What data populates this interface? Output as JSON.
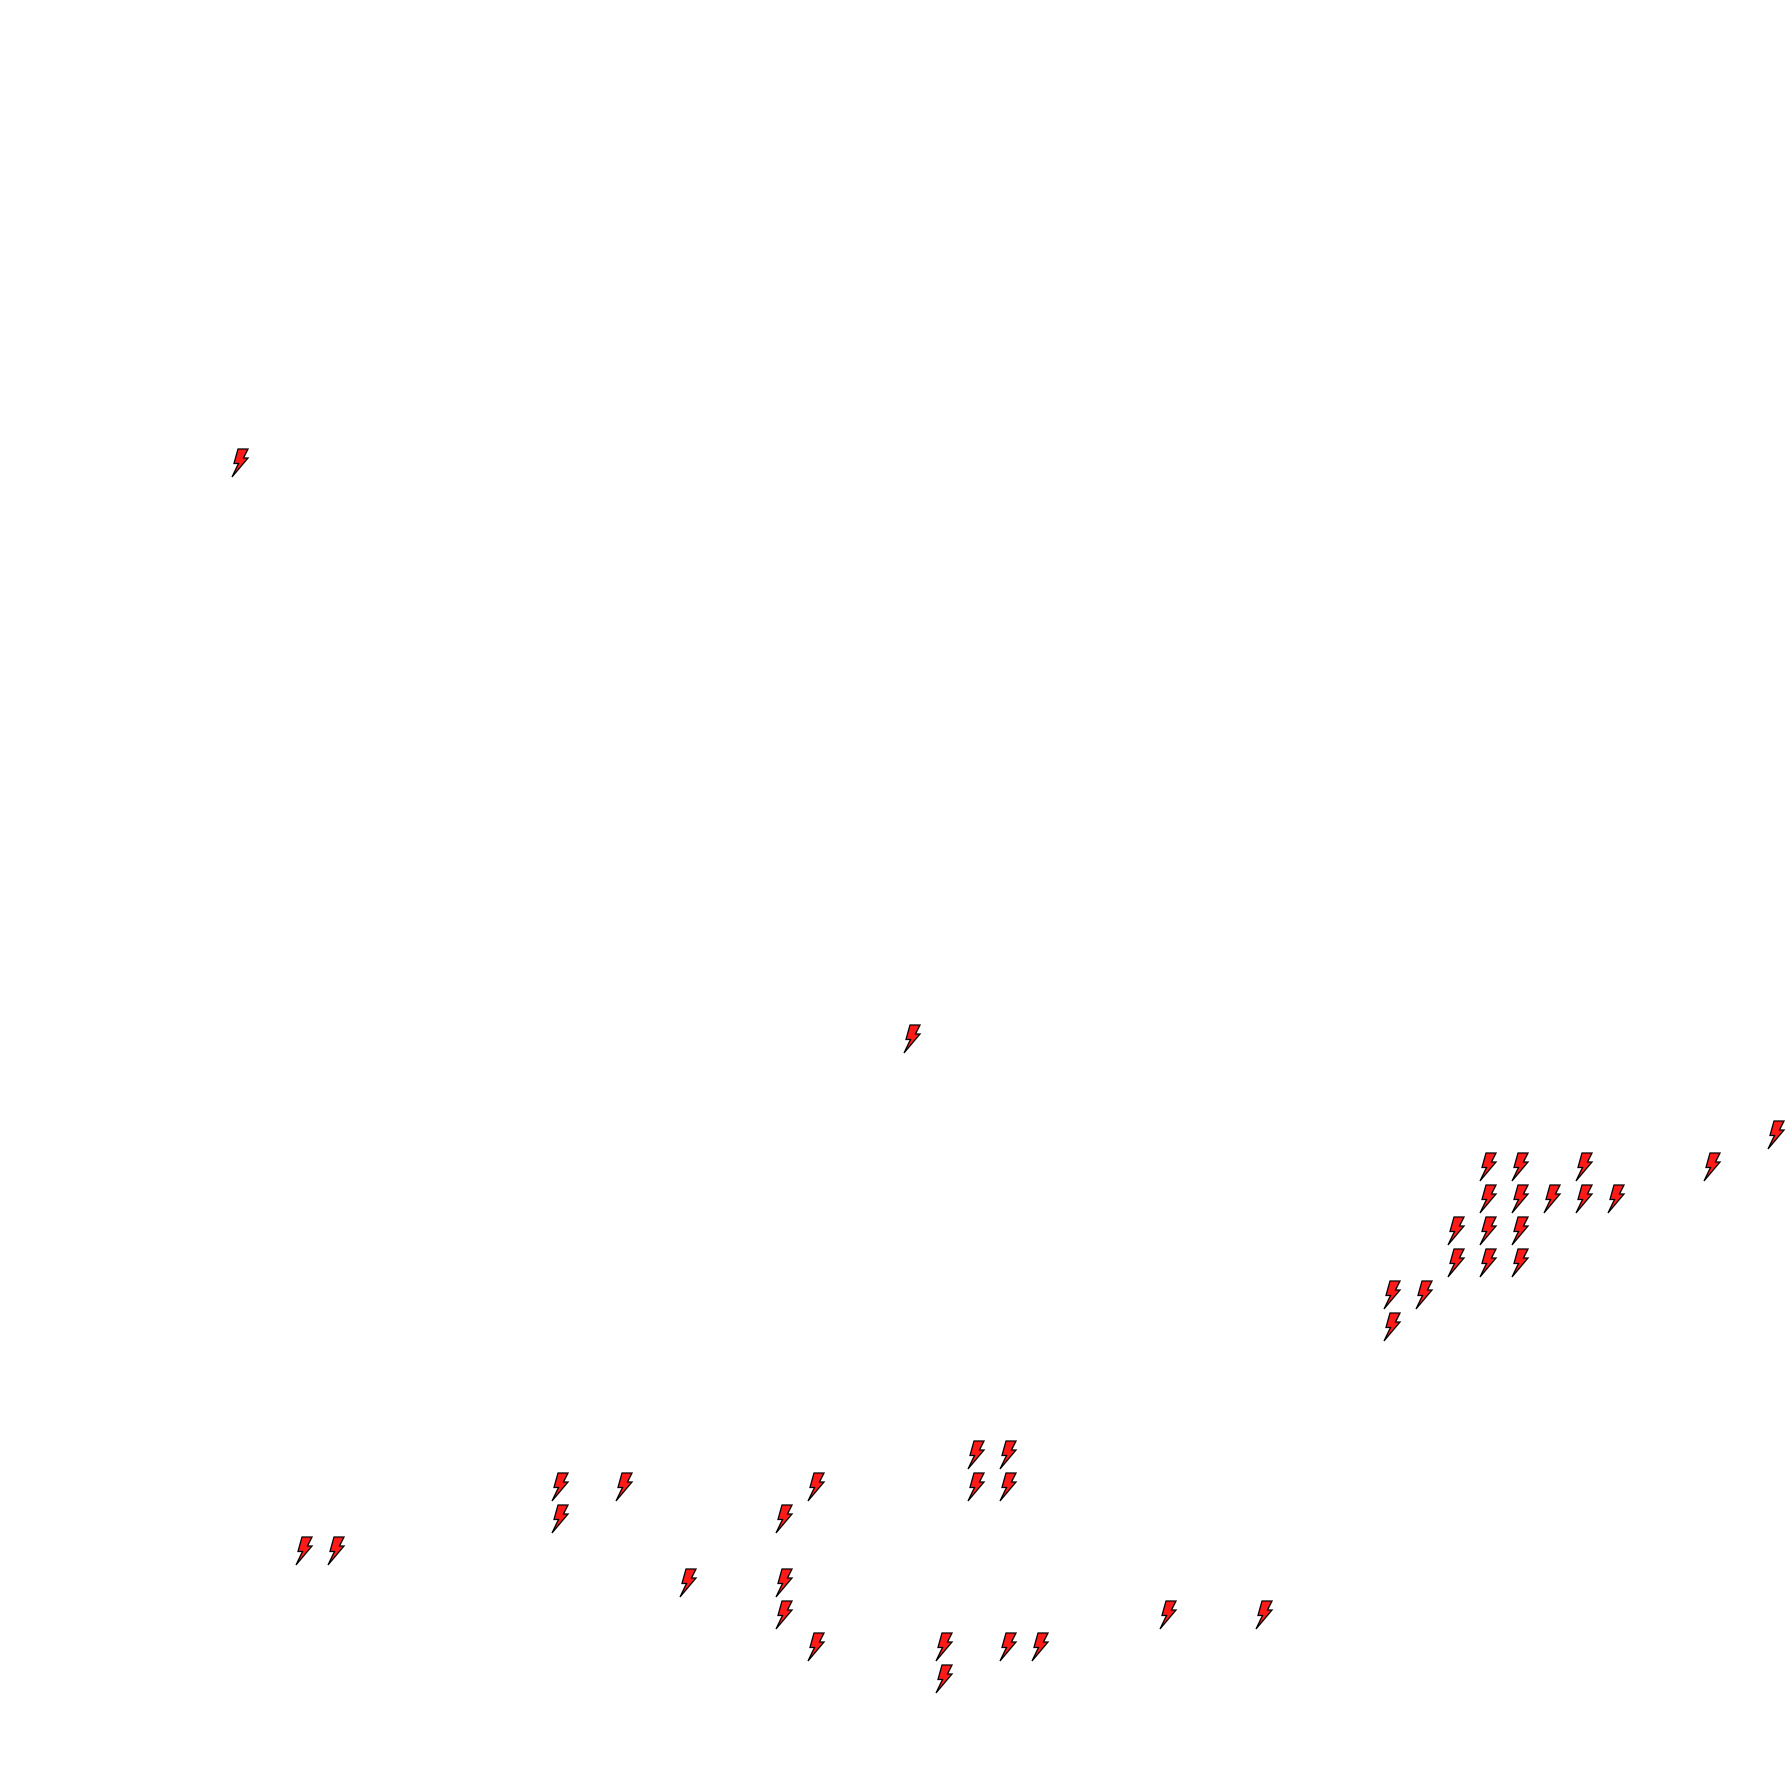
{
  "map": {
    "background_color": "#ffffff",
    "marker": {
      "icon": "lightning-bolt-icon",
      "fill_color": "#ff1a1a",
      "stroke_color": "#000000"
    }
  }
}
